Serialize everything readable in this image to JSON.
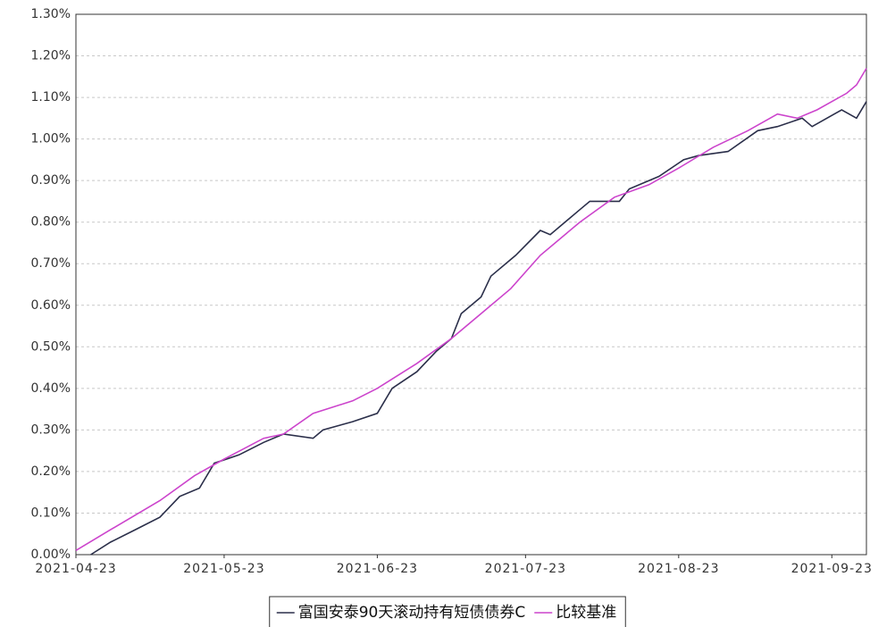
{
  "chart_data": {
    "type": "line",
    "xlim": [
      "2021-04-23",
      "2021-09-30"
    ],
    "xticks": [
      "2021-04-23",
      "2021-05-23",
      "2021-06-23",
      "2021-07-23",
      "2021-08-23",
      "2021-09-23"
    ],
    "ylim": [
      0,
      1.3
    ],
    "yticks": [
      {
        "value": 0,
        "label": "0.00%"
      },
      {
        "value": 0.1,
        "label": "0.10%"
      },
      {
        "value": 0.2,
        "label": "0.20%"
      },
      {
        "value": 0.3,
        "label": "0.30%"
      },
      {
        "value": 0.4,
        "label": "0.40%"
      },
      {
        "value": 0.5,
        "label": "0.50%"
      },
      {
        "value": 0.6,
        "label": "0.60%"
      },
      {
        "value": 0.7,
        "label": "0.70%"
      },
      {
        "value": 0.8,
        "label": "0.80%"
      },
      {
        "value": 0.9,
        "label": "0.90%"
      },
      {
        "value": 1.0,
        "label": "1.00%"
      },
      {
        "value": 1.1,
        "label": "1.10%"
      },
      {
        "value": 1.2,
        "label": "1.20%"
      },
      {
        "value": 1.3,
        "label": "1.30%"
      }
    ],
    "grid": true,
    "legend": "bottom",
    "series": [
      {
        "name": "富国安泰90天滚动持有短债债券C",
        "color": "#2b2f4a",
        "x": [
          "2021-04-26",
          "2021-04-30",
          "2021-05-05",
          "2021-05-10",
          "2021-05-14",
          "2021-05-18",
          "2021-05-21",
          "2021-05-26",
          "2021-05-31",
          "2021-06-04",
          "2021-06-10",
          "2021-06-12",
          "2021-06-18",
          "2021-06-23",
          "2021-06-26",
          "2021-07-01",
          "2021-07-05",
          "2021-07-08",
          "2021-07-10",
          "2021-07-14",
          "2021-07-16",
          "2021-07-21",
          "2021-07-26",
          "2021-07-28",
          "2021-08-03",
          "2021-08-05",
          "2021-08-11",
          "2021-08-13",
          "2021-08-19",
          "2021-08-24",
          "2021-08-27",
          "2021-09-02",
          "2021-09-08",
          "2021-09-12",
          "2021-09-17",
          "2021-09-19",
          "2021-09-22",
          "2021-09-25",
          "2021-09-28",
          "2021-09-30"
        ],
        "values": [
          0.0,
          0.03,
          0.06,
          0.09,
          0.14,
          0.16,
          0.22,
          0.24,
          0.27,
          0.29,
          0.28,
          0.3,
          0.32,
          0.34,
          0.4,
          0.44,
          0.49,
          0.52,
          0.58,
          0.62,
          0.67,
          0.72,
          0.78,
          0.77,
          0.83,
          0.85,
          0.85,
          0.88,
          0.91,
          0.95,
          0.96,
          0.97,
          1.02,
          1.03,
          1.05,
          1.03,
          1.05,
          1.07,
          1.05,
          1.09
        ]
      },
      {
        "name": "比较基准",
        "color": "#cc44cc",
        "x": [
          "2021-04-23",
          "2021-04-30",
          "2021-05-10",
          "2021-05-17",
          "2021-05-23",
          "2021-05-31",
          "2021-06-04",
          "2021-06-10",
          "2021-06-18",
          "2021-06-23",
          "2021-07-01",
          "2021-07-08",
          "2021-07-14",
          "2021-07-20",
          "2021-07-26",
          "2021-08-03",
          "2021-08-10",
          "2021-08-17",
          "2021-08-23",
          "2021-08-30",
          "2021-09-06",
          "2021-09-12",
          "2021-09-16",
          "2021-09-20",
          "2021-09-26",
          "2021-09-28",
          "2021-09-30"
        ],
        "values": [
          0.01,
          0.06,
          0.13,
          0.19,
          0.23,
          0.28,
          0.29,
          0.34,
          0.37,
          0.4,
          0.46,
          0.52,
          0.58,
          0.64,
          0.72,
          0.8,
          0.86,
          0.89,
          0.93,
          0.98,
          1.02,
          1.06,
          1.05,
          1.07,
          1.11,
          1.13,
          1.17
        ]
      }
    ]
  }
}
